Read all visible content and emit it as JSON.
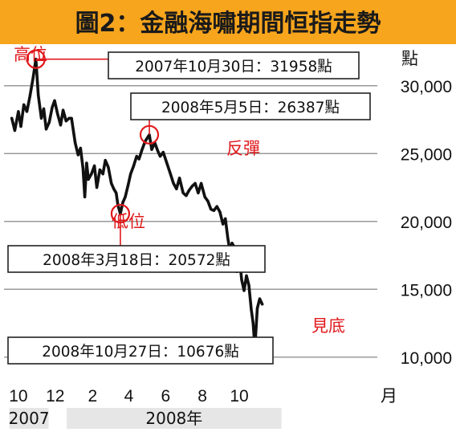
{
  "chart_data": {
    "type": "line",
    "title": "圖2：金融海嘯期間恒指走勢",
    "y_unit": "點",
    "x_unit": "月",
    "ylim": [
      8500,
      31500
    ],
    "y_ticks": [
      {
        "value": 30000,
        "label": "30,000"
      },
      {
        "value": 25000,
        "label": "25,000"
      },
      {
        "value": 20000,
        "label": "20,000"
      },
      {
        "value": 15000,
        "label": "15,000"
      },
      {
        "value": 10000,
        "label": "10,000"
      }
    ],
    "x_ticks": [
      {
        "date": "2007-10-01",
        "label": "10"
      },
      {
        "date": "2007-12-01",
        "label": "12"
      },
      {
        "date": "2008-02-01",
        "label": "2"
      },
      {
        "date": "2008-04-01",
        "label": "4"
      },
      {
        "date": "2008-06-01",
        "label": "6"
      },
      {
        "date": "2008-08-01",
        "label": "8"
      },
      {
        "date": "2008-10-01",
        "label": "10"
      }
    ],
    "years": [
      {
        "label": "2007",
        "start": "2007-09-16",
        "end": "2007-11-20"
      },
      {
        "label": "2008年",
        "start": "2007-12-20",
        "end": "2008-12-10"
      }
    ],
    "grid": "horizontal",
    "colors": {
      "line": "#111111",
      "accent": "#e0191c",
      "title_bar": "#f7a51d",
      "year_bar": "#e6e6e6",
      "grid": "#9a9a9a"
    },
    "series": [
      {
        "x": [
          "2007-09-20",
          "2007-09-25",
          "2007-10-01",
          "2007-10-05",
          "2007-10-10",
          "2007-10-15",
          "2007-10-20",
          "2007-10-25",
          "2007-10-30",
          "2007-11-03",
          "2007-11-08",
          "2007-11-12",
          "2007-11-16",
          "2007-11-21",
          "2007-11-26",
          "2007-11-30",
          "2007-12-05",
          "2007-12-10",
          "2007-12-14",
          "2007-12-19",
          "2007-12-24",
          "2007-12-28",
          "2008-01-03",
          "2008-01-08",
          "2008-01-12",
          "2008-01-16",
          "2008-01-19",
          "2008-01-22",
          "2008-01-25",
          "2008-01-30",
          "2008-02-04",
          "2008-02-08",
          "2008-02-13",
          "2008-02-18",
          "2008-02-22",
          "2008-02-27",
          "2008-03-03",
          "2008-03-07",
          "2008-03-11",
          "2008-03-14",
          "2008-03-18",
          "2008-03-22",
          "2008-03-26",
          "2008-03-31",
          "2008-04-04",
          "2008-04-09",
          "2008-04-14",
          "2008-04-18",
          "2008-04-23",
          "2008-04-28",
          "2008-05-05",
          "2008-05-09",
          "2008-05-14",
          "2008-05-19",
          "2008-05-23",
          "2008-05-28",
          "2008-06-03",
          "2008-06-09",
          "2008-06-14",
          "2008-06-19",
          "2008-06-24",
          "2008-06-30",
          "2008-07-05",
          "2008-07-10",
          "2008-07-15",
          "2008-07-20",
          "2008-07-25",
          "2008-07-30",
          "2008-08-05",
          "2008-08-10",
          "2008-08-15",
          "2008-08-20",
          "2008-08-25",
          "2008-08-30",
          "2008-09-04",
          "2008-09-08",
          "2008-09-12",
          "2008-09-16",
          "2008-09-19",
          "2008-09-23",
          "2008-09-27",
          "2008-10-01",
          "2008-10-05",
          "2008-10-09",
          "2008-10-13",
          "2008-10-17",
          "2008-10-21",
          "2008-10-24",
          "2008-10-27",
          "2008-10-31",
          "2008-11-04",
          "2008-11-08"
        ],
        "y": [
          27600,
          26700,
          28100,
          27000,
          28600,
          28100,
          29200,
          30500,
          31958,
          29300,
          27600,
          28300,
          26800,
          27300,
          28400,
          28900,
          27900,
          27100,
          28200,
          27400,
          27600,
          27600,
          25800,
          24900,
          25400,
          23900,
          21800,
          24300,
          23100,
          23500,
          24100,
          22500,
          23800,
          23500,
          24500,
          24000,
          22800,
          22400,
          22100,
          21200,
          20572,
          21400,
          21800,
          22700,
          23500,
          24100,
          24800,
          24600,
          25300,
          25900,
          26387,
          25300,
          25800,
          25200,
          24800,
          25100,
          24300,
          23500,
          22800,
          22400,
          23200,
          22100,
          21900,
          22300,
          22600,
          22800,
          22100,
          22800,
          21800,
          21500,
          20900,
          20800,
          21100,
          20700,
          19800,
          20200,
          18800,
          17700,
          18400,
          18100,
          16300,
          17500,
          15700,
          14900,
          16000,
          15300,
          13500,
          12500,
          10676,
          13600,
          14300,
          13900
        ],
        "values": [
          27600,
          26700,
          28100,
          27000,
          28600,
          28100,
          29200,
          30500,
          31958,
          29300,
          27600,
          28300,
          26800,
          27300,
          28400,
          28900,
          27900,
          27100,
          28200,
          27400,
          27600,
          27600,
          25800,
          24900,
          25400,
          23900,
          21800,
          24300,
          23100,
          23500,
          24100,
          22500,
          23800,
          23500,
          24500,
          24000,
          22800,
          22400,
          22100,
          21200,
          20572,
          21400,
          21800,
          22700,
          23500,
          24100,
          24800,
          24600,
          25300,
          25900,
          26387,
          25300,
          25800,
          25200,
          24800,
          25100,
          24300,
          23500,
          22800,
          22400,
          23200,
          22100,
          21900,
          22300,
          22600,
          22800,
          22100,
          22800,
          21800,
          21500,
          20900,
          20800,
          21100,
          20700,
          19800,
          20200,
          18800,
          17700,
          18400,
          18100,
          16300,
          17500,
          15700,
          14900,
          16000,
          15300,
          13500,
          12500,
          10676,
          13600,
          14300,
          13900
        ]
      }
    ],
    "annotations": [
      {
        "key": "high",
        "label": "高位",
        "callout": "2007年10月30日：31958點",
        "date": "2007-10-30",
        "value": 31958
      },
      {
        "key": "rebound",
        "label": "反彈",
        "callout": "2008年5月5日：26387點",
        "date": "2008-05-05",
        "value": 26387
      },
      {
        "key": "low",
        "label": "低位",
        "callout": "2008年3月18日：20572點",
        "date": "2008-03-18",
        "value": 20572
      },
      {
        "key": "bottom",
        "label": "見底",
        "callout": "2008年10月27日：10676點",
        "date": "2008-10-27",
        "value": 10676
      }
    ]
  }
}
